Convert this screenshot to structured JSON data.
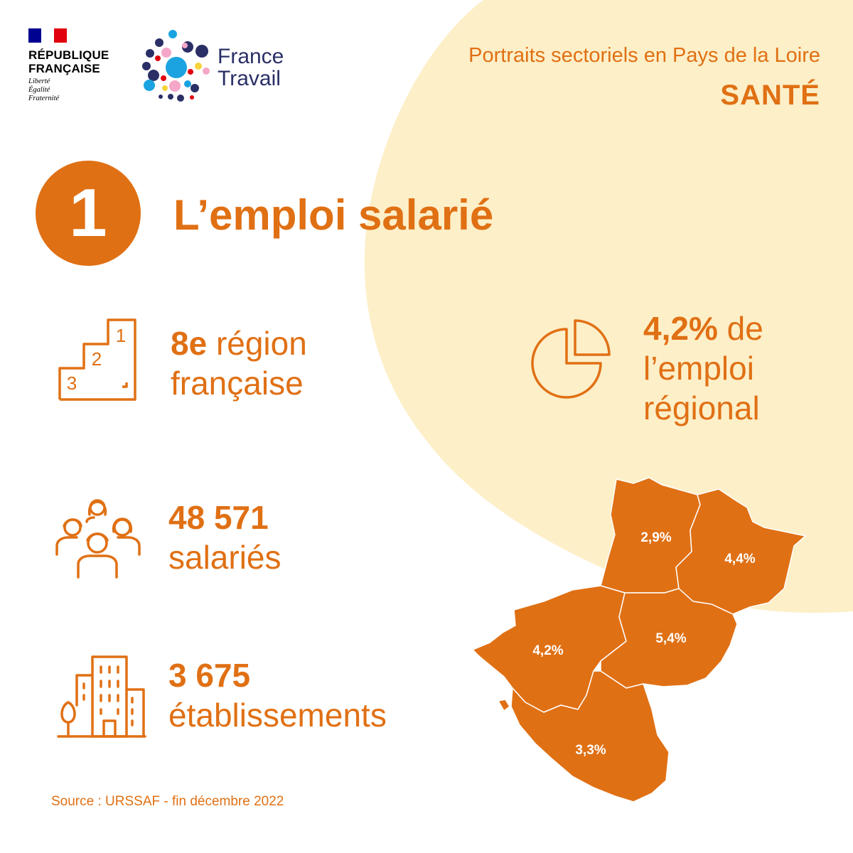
{
  "header": {
    "republique": {
      "line1": "RÉPUBLIQUE",
      "line2": "FRANÇAISE",
      "motto1": "Liberté",
      "motto2": "Égalité",
      "motto3": "Fraternité"
    },
    "france_travail": {
      "line1": "France",
      "line2": "Travail"
    },
    "subtitle": "Portraits sectoriels en Pays de la Loire",
    "title": "SANTÉ"
  },
  "section": {
    "number": "1",
    "title": "L’emploi salarié"
  },
  "stats": {
    "rank": {
      "value": "8e",
      "text1": " région",
      "text2": "française",
      "podium_labels": [
        "1",
        "2",
        "3"
      ]
    },
    "share": {
      "value": "4,2%",
      "text1": " de",
      "text2": "l’emploi",
      "text3": "régional"
    },
    "employees": {
      "value": "48 571",
      "text": "salariés"
    },
    "establishments": {
      "value": "3 675",
      "text": "établissements"
    }
  },
  "map": {
    "departments": [
      {
        "value": "2,9%"
      },
      {
        "value": "4,4%"
      },
      {
        "value": "4,2%"
      },
      {
        "value": "5,4%"
      },
      {
        "value": "3,3%"
      }
    ]
  },
  "source": "Source : URSSAF - fin décembre 2022",
  "colors": {
    "accent": "#e07014",
    "background_blob": "#fdefc8",
    "navy": "#2a2f66"
  },
  "icons": [
    "podium-icon",
    "pie-chart-icon",
    "people-group-icon",
    "buildings-icon"
  ]
}
